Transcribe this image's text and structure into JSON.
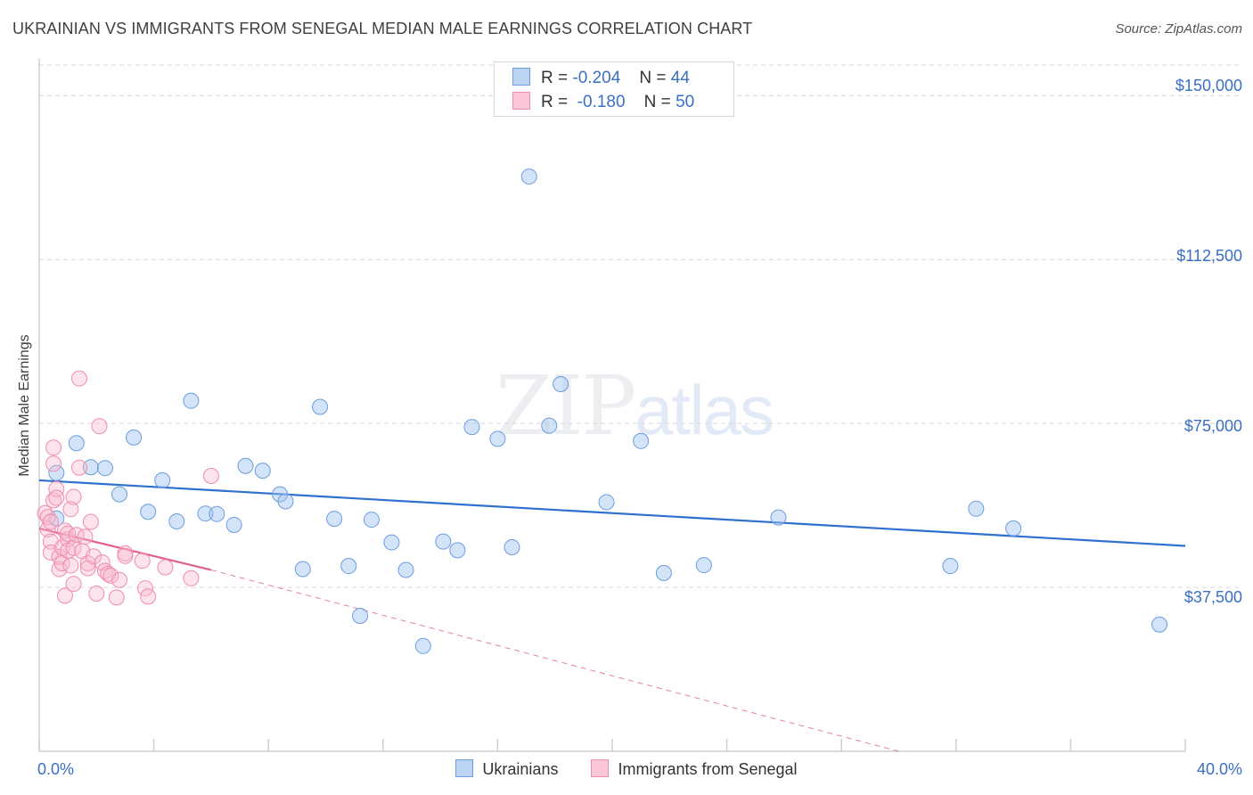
{
  "title": "UKRAINIAN VS IMMIGRANTS FROM SENEGAL MEDIAN MALE EARNINGS CORRELATION CHART",
  "source": "Source: ZipAtlas.com",
  "watermark": {
    "zip": "ZIP",
    "atlas": "atlas"
  },
  "legend": {
    "r_label": "R =",
    "n_label": "N =",
    "series": [
      {
        "r": "-0.204",
        "n": "44"
      },
      {
        "r": "-0.180",
        "n": "50"
      }
    ]
  },
  "bottom_legend": [
    "Ukrainians",
    "Immigrants from Senegal"
  ],
  "chart_data": {
    "type": "scatter",
    "title": "UKRAINIAN VS IMMIGRANTS FROM SENEGAL MEDIAN MALE EARNINGS CORRELATION CHART",
    "xlabel": "",
    "ylabel": "Median Male Earnings",
    "xlim": [
      0,
      40
    ],
    "ylim": [
      0,
      157000
    ],
    "x_tick_labels": [
      "0.0%",
      "40.0%"
    ],
    "y_ticks": [
      37500,
      75000,
      112500,
      150000
    ],
    "y_tick_labels": [
      "$37,500",
      "$75,000",
      "$112,500",
      "$150,000"
    ],
    "grid": true,
    "colors": {
      "ukrainians": "#6b9de0",
      "senegal": "#f08cb0",
      "ukrainians_line": "#2f6fd0",
      "senegal_line": "#e0608c"
    },
    "series": [
      {
        "name": "Ukrainians",
        "r": -0.204,
        "n": 44,
        "trend": {
          "x0": 0,
          "y0": 62000,
          "x1": 40,
          "y1": 47000
        },
        "points": [
          [
            0.6,
            63700
          ],
          [
            0.6,
            53300
          ],
          [
            1.3,
            70500
          ],
          [
            1.8,
            65000
          ],
          [
            2.3,
            64800
          ],
          [
            2.8,
            58800
          ],
          [
            3.3,
            71800
          ],
          [
            3.8,
            54800
          ],
          [
            4.3,
            62000
          ],
          [
            4.8,
            52600
          ],
          [
            5.3,
            80200
          ],
          [
            5.8,
            54400
          ],
          [
            6.2,
            54300
          ],
          [
            6.8,
            51800
          ],
          [
            7.2,
            65300
          ],
          [
            7.8,
            64200
          ],
          [
            8.4,
            58800
          ],
          [
            8.6,
            57200
          ],
          [
            9.2,
            41700
          ],
          [
            9.8,
            78800
          ],
          [
            10.3,
            53200
          ],
          [
            10.8,
            42400
          ],
          [
            11.2,
            31000
          ],
          [
            11.6,
            53000
          ],
          [
            12.3,
            47800
          ],
          [
            12.8,
            41500
          ],
          [
            13.4,
            24100
          ],
          [
            14.1,
            48000
          ],
          [
            14.6,
            46000
          ],
          [
            15.1,
            74200
          ],
          [
            16.0,
            71500
          ],
          [
            16.5,
            46700
          ],
          [
            17.1,
            131500
          ],
          [
            17.8,
            74500
          ],
          [
            18.2,
            84000
          ],
          [
            19.8,
            57000
          ],
          [
            21.0,
            71000
          ],
          [
            21.8,
            40800
          ],
          [
            23.2,
            42600
          ],
          [
            25.8,
            53500
          ],
          [
            31.8,
            42400
          ],
          [
            32.7,
            55500
          ],
          [
            34.0,
            51000
          ],
          [
            39.1,
            29000
          ]
        ]
      },
      {
        "name": "Immigrants from Senegal",
        "r": -0.18,
        "n": 50,
        "trend": {
          "x0": 0,
          "y0": 51000,
          "x1": 6,
          "y1": 41500
        },
        "trend_extension": {
          "x0": 6,
          "y0": 41500,
          "x1": 30,
          "y1": 0
        },
        "points": [
          [
            0.2,
            54500
          ],
          [
            0.3,
            50800
          ],
          [
            0.3,
            53600
          ],
          [
            0.4,
            48000
          ],
          [
            0.4,
            45500
          ],
          [
            0.4,
            52500
          ],
          [
            0.5,
            57400
          ],
          [
            0.5,
            65800
          ],
          [
            0.5,
            69500
          ],
          [
            0.6,
            60000
          ],
          [
            0.6,
            58000
          ],
          [
            0.7,
            41700
          ],
          [
            0.7,
            44500
          ],
          [
            0.8,
            46600
          ],
          [
            0.8,
            43000
          ],
          [
            0.9,
            50500
          ],
          [
            0.9,
            35600
          ],
          [
            1.0,
            48500
          ],
          [
            1.0,
            49800
          ],
          [
            1.0,
            45900
          ],
          [
            1.1,
            55400
          ],
          [
            1.1,
            42500
          ],
          [
            1.2,
            46500
          ],
          [
            1.2,
            38300
          ],
          [
            1.2,
            58200
          ],
          [
            1.3,
            49500
          ],
          [
            1.4,
            64900
          ],
          [
            1.4,
            85300
          ],
          [
            1.5,
            45800
          ],
          [
            1.6,
            49100
          ],
          [
            1.7,
            43000
          ],
          [
            1.7,
            41900
          ],
          [
            1.8,
            52500
          ],
          [
            1.9,
            44600
          ],
          [
            2.0,
            36100
          ],
          [
            2.1,
            74400
          ],
          [
            2.2,
            43200
          ],
          [
            2.3,
            41300
          ],
          [
            2.4,
            40600
          ],
          [
            2.5,
            40200
          ],
          [
            2.7,
            35200
          ],
          [
            2.8,
            39200
          ],
          [
            3.0,
            45300
          ],
          [
            3.0,
            44700
          ],
          [
            3.6,
            43600
          ],
          [
            3.7,
            37300
          ],
          [
            3.8,
            35400
          ],
          [
            4.4,
            42100
          ],
          [
            5.3,
            39600
          ],
          [
            6.0,
            63000
          ]
        ]
      }
    ]
  }
}
